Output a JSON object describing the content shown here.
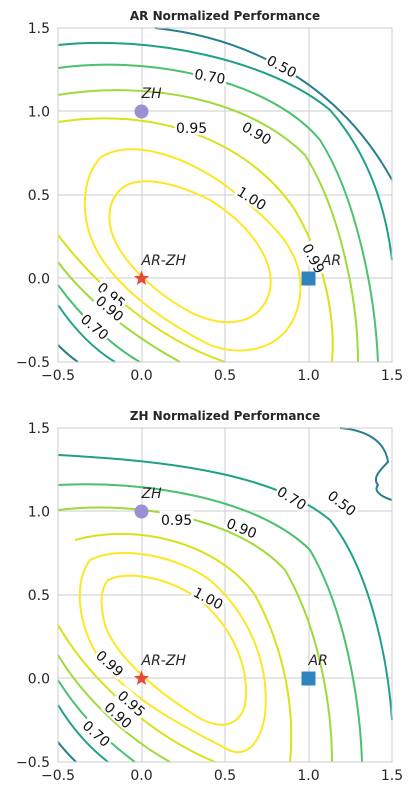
{
  "chart_data": [
    {
      "type": "contour",
      "title": "AR Normalized Performance",
      "xlim": [
        -0.5,
        1.5
      ],
      "ylim": [
        -0.5,
        1.5
      ],
      "xticks": [
        "−0.5",
        "0.0",
        "0.5",
        "1.0",
        "1.5"
      ],
      "yticks": [
        "−0.5",
        "0.0",
        "0.5",
        "1.0",
        "1.5"
      ],
      "grid": true,
      "levels": [
        {
          "value": 1.0,
          "label": "1.00",
          "color": "#fde725"
        },
        {
          "value": 0.99,
          "label": "0.99",
          "color": "#fde725"
        },
        {
          "value": 0.95,
          "label": "0.95",
          "color": "#d8e219"
        },
        {
          "value": 0.9,
          "label": "0.90",
          "color": "#a0da39"
        },
        {
          "value": 0.8,
          "label": "",
          "color": "#4ac16d"
        },
        {
          "value": 0.7,
          "label": "0.70",
          "color": "#1fa187"
        },
        {
          "value": 0.5,
          "label": "0.50",
          "color": "#277f8e"
        }
      ],
      "contour_labels": [
        {
          "text": "0.50",
          "x": 0.84,
          "y": 1.27,
          "rot": 28
        },
        {
          "text": "0.70",
          "x": 0.41,
          "y": 1.21,
          "rot": 10
        },
        {
          "text": "0.95",
          "x": 0.3,
          "y": 0.9,
          "rot": 0
        },
        {
          "text": "0.90",
          "x": 0.69,
          "y": 0.87,
          "rot": 30
        },
        {
          "text": "1.00",
          "x": 0.66,
          "y": 0.48,
          "rot": 32
        },
        {
          "text": "0.99",
          "x": 1.03,
          "y": 0.12,
          "rot": 62
        },
        {
          "text": "0.95",
          "x": -0.18,
          "y": -0.1,
          "rot": 40
        },
        {
          "text": "0.90",
          "x": -0.19,
          "y": -0.18,
          "rot": 40
        },
        {
          "text": "0.70",
          "x": -0.28,
          "y": -0.29,
          "rot": 40
        }
      ],
      "markers": [
        {
          "name": "ZH",
          "x": 0,
          "y": 1,
          "shape": "circle",
          "color": "#9b8fd6",
          "label_dx": 0.0,
          "label_dy": 0.08
        },
        {
          "name": "AR-ZH",
          "x": 0,
          "y": 0,
          "shape": "star",
          "color": "#e8493a",
          "label_dx": 0.0,
          "label_dy": 0.08
        },
        {
          "name": "AR",
          "x": 1,
          "y": 0,
          "shape": "square",
          "color": "#2f84bf",
          "label_dx": 0.08,
          "label_dy": 0.08
        }
      ]
    },
    {
      "type": "contour",
      "title": "ZH Normalized Performance",
      "xlim": [
        -0.5,
        1.5
      ],
      "ylim": [
        -0.5,
        1.5
      ],
      "xticks": [
        "−0.5",
        "0.0",
        "0.5",
        "1.0",
        "1.5"
      ],
      "yticks": [
        "−0.5",
        "0.0",
        "0.5",
        "1.0",
        "1.5"
      ],
      "grid": true,
      "levels": [
        {
          "value": 1.0,
          "label": "1.00",
          "color": "#fde725"
        },
        {
          "value": 0.99,
          "label": "0.99",
          "color": "#fde725"
        },
        {
          "value": 0.95,
          "label": "0.95",
          "color": "#d8e219"
        },
        {
          "value": 0.9,
          "label": "0.90",
          "color": "#a0da39"
        },
        {
          "value": 0.8,
          "label": "",
          "color": "#4ac16d"
        },
        {
          "value": 0.7,
          "label": "0.70",
          "color": "#1fa187"
        },
        {
          "value": 0.5,
          "label": "0.50",
          "color": "#277f8e"
        }
      ],
      "contour_labels": [
        {
          "text": "0.70",
          "x": 0.9,
          "y": 1.08,
          "rot": 32
        },
        {
          "text": "0.50",
          "x": 1.2,
          "y": 1.05,
          "rot": 38
        },
        {
          "text": "0.95",
          "x": 0.21,
          "y": 0.95,
          "rot": 0
        },
        {
          "text": "0.90",
          "x": 0.6,
          "y": 0.9,
          "rot": 22
        },
        {
          "text": "1.00",
          "x": 0.4,
          "y": 0.48,
          "rot": 28
        },
        {
          "text": "0.99",
          "x": -0.19,
          "y": 0.09,
          "rot": 42
        },
        {
          "text": "0.95",
          "x": -0.06,
          "y": -0.15,
          "rot": 42
        },
        {
          "text": "0.90",
          "x": -0.14,
          "y": -0.22,
          "rot": 42
        },
        {
          "text": "0.70",
          "x": -0.27,
          "y": -0.33,
          "rot": 42
        }
      ],
      "markers": [
        {
          "name": "ZH",
          "x": 0,
          "y": 1,
          "shape": "circle",
          "color": "#9b8fd6",
          "label_dx": 0.0,
          "label_dy": 0.08
        },
        {
          "name": "AR-ZH",
          "x": 0,
          "y": 0,
          "shape": "star",
          "color": "#e8493a",
          "label_dx": 0.0,
          "label_dy": 0.08
        },
        {
          "name": "AR",
          "x": 1,
          "y": 0,
          "shape": "square",
          "color": "#2f84bf",
          "label_dx": 0.0,
          "label_dy": 0.08
        }
      ]
    }
  ]
}
